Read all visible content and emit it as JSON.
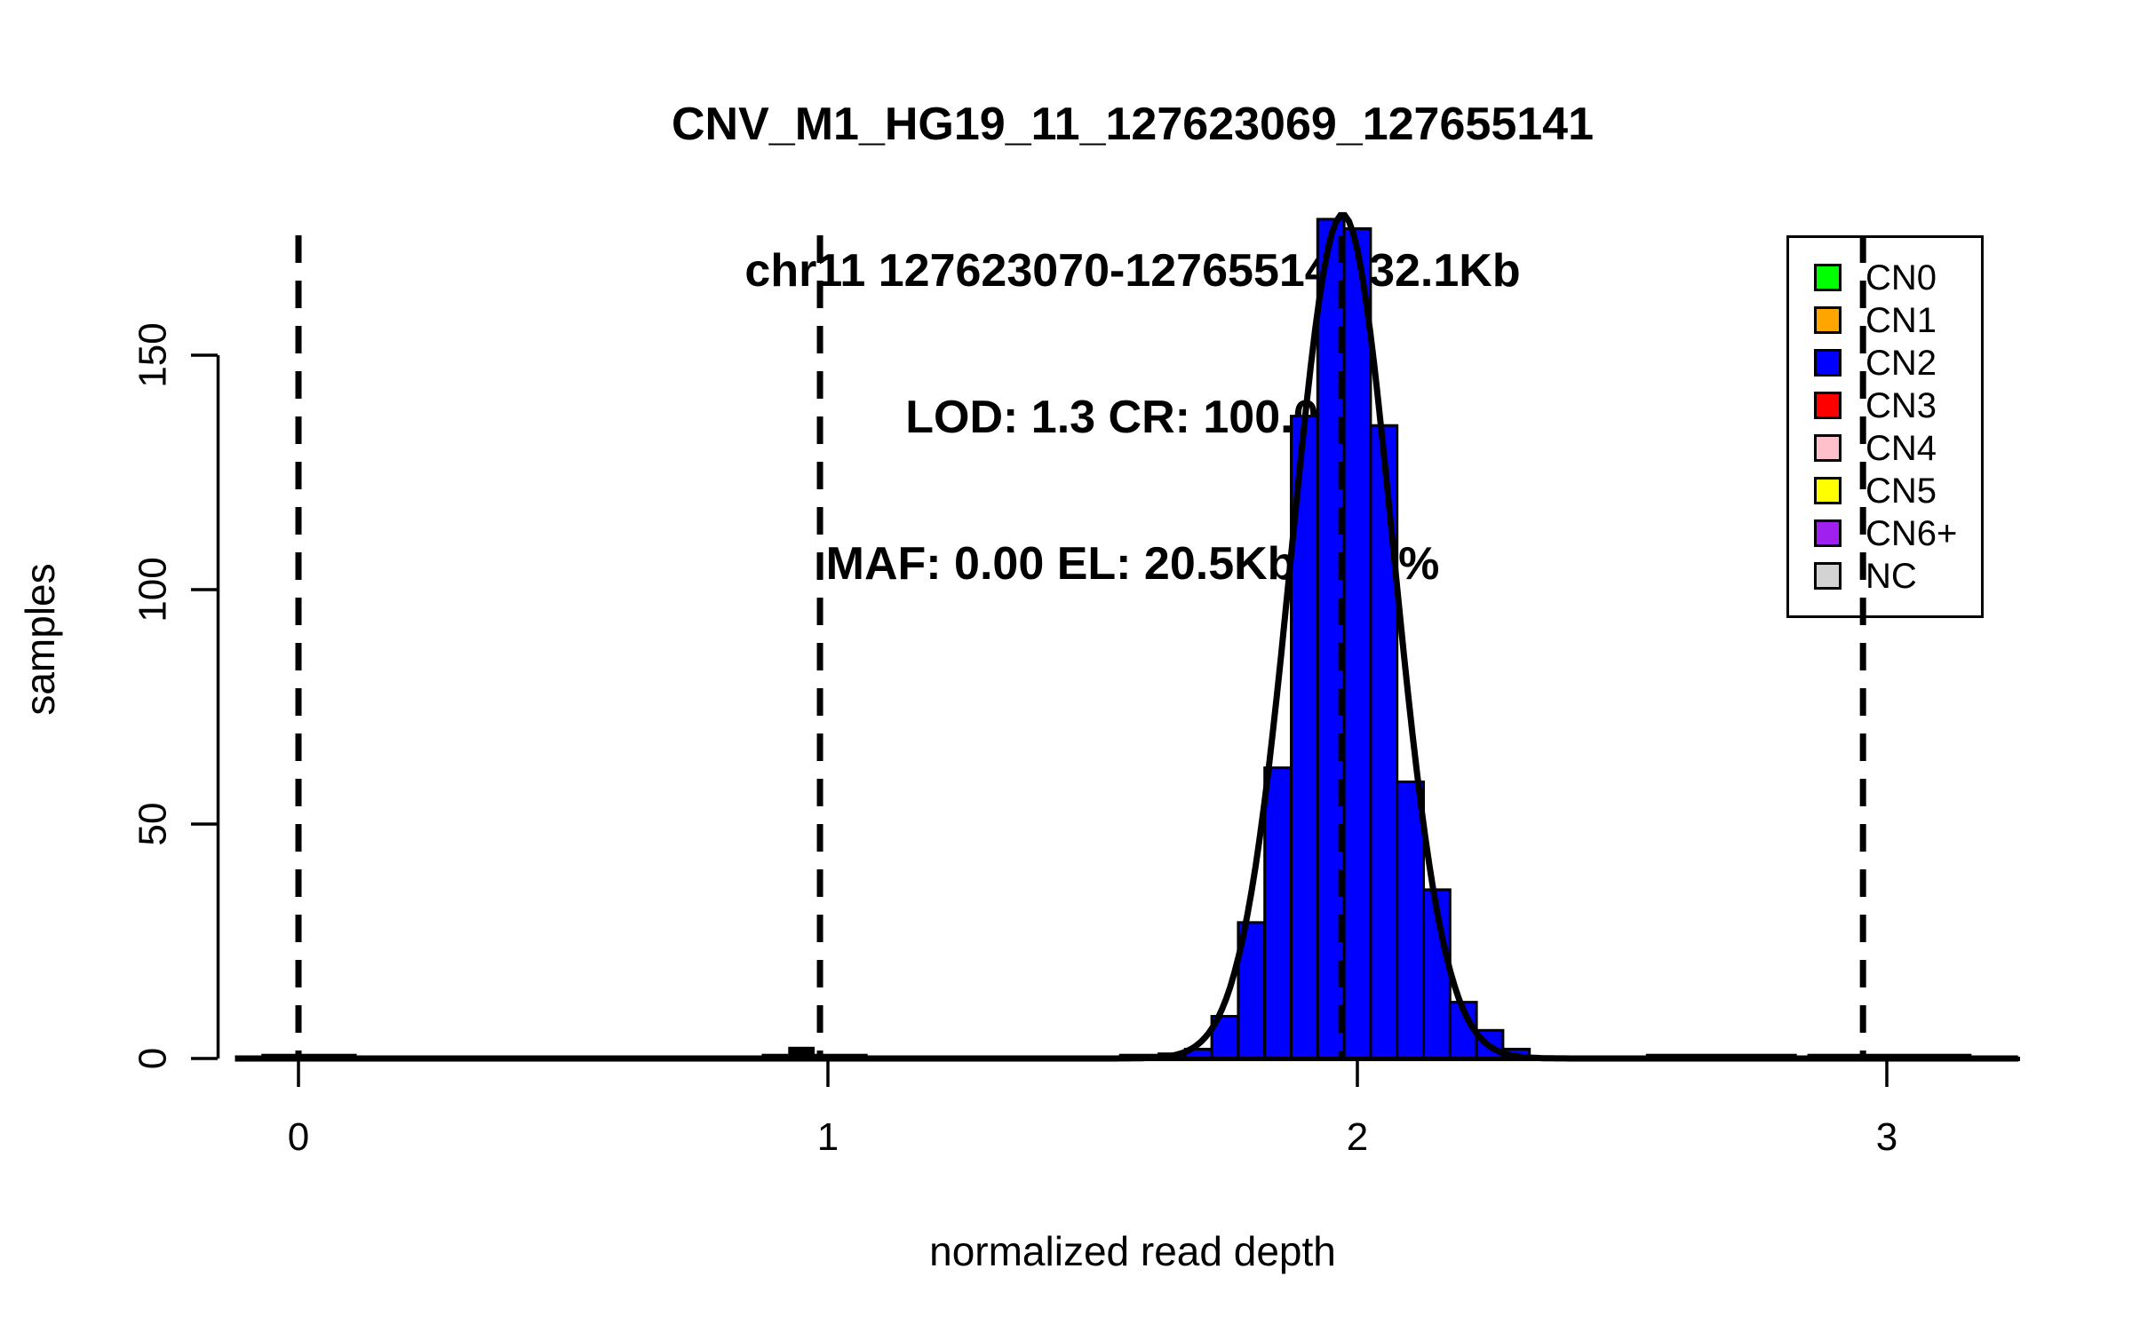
{
  "chart_data": {
    "type": "bar",
    "subtype": "histogram-with-density-fit",
    "title_lines": [
      "CNV_M1_HG19_11_127623069_127655141",
      "chr11 127623070-127655141 32.1Kb",
      "LOD: 1.3 CR: 100.0%",
      "MAF: 0.00 EL: 20.5Kb 64.0%"
    ],
    "xlabel": "normalized read depth",
    "ylabel": "samples",
    "x_ticks": [
      0,
      1,
      2,
      3
    ],
    "y_ticks": [
      0,
      50,
      100,
      150
    ],
    "xlim": [
      -0.12,
      3.25
    ],
    "ylim": [
      0,
      185
    ],
    "bin_width": 0.05,
    "bars": [
      {
        "x0": 1.625,
        "count": 1
      },
      {
        "x0": 1.675,
        "count": 2
      },
      {
        "x0": 1.725,
        "count": 9
      },
      {
        "x0": 1.775,
        "count": 29
      },
      {
        "x0": 1.825,
        "count": 62
      },
      {
        "x0": 1.875,
        "count": 137
      },
      {
        "x0": 1.925,
        "count": 179
      },
      {
        "x0": 1.975,
        "count": 177
      },
      {
        "x0": 2.025,
        "count": 135
      },
      {
        "x0": 2.075,
        "count": 59
      },
      {
        "x0": 2.125,
        "count": 36
      },
      {
        "x0": 2.175,
        "count": 12
      },
      {
        "x0": 2.225,
        "count": 6
      },
      {
        "x0": 2.275,
        "count": 2
      }
    ],
    "minor_bars": [
      {
        "x0": -0.07,
        "x1": 0.11,
        "count": 1
      },
      {
        "x0": 0.875,
        "x1": 0.925,
        "count": 1
      },
      {
        "x0": 0.925,
        "x1": 0.975,
        "count": 2.5
      },
      {
        "x0": 0.975,
        "x1": 1.075,
        "count": 1
      },
      {
        "x0": 1.55,
        "x1": 1.625,
        "count": 1
      },
      {
        "x0": 2.545,
        "x1": 2.83,
        "count": 1
      },
      {
        "x0": 2.85,
        "x1": 3.16,
        "count": 1
      }
    ],
    "density_curve": {
      "shape": "gaussian",
      "mean": 1.972,
      "sd": 0.0955,
      "peak": 180
    },
    "cluster_mean_lines": [
      0,
      0.985,
      1.97,
      2.955
    ],
    "bar_fill": "#0000FF",
    "line_color": "#000000",
    "legend_position": "top-right",
    "legend": {
      "items": [
        {
          "label": "CN0",
          "color": "#00FF00"
        },
        {
          "label": "CN1",
          "color": "#FFA500"
        },
        {
          "label": "CN2",
          "color": "#0000FF"
        },
        {
          "label": "CN3",
          "color": "#FF0000"
        },
        {
          "label": "CN4",
          "color": "#FFC0CB"
        },
        {
          "label": "CN5",
          "color": "#FFFF00"
        },
        {
          "label": "CN6+",
          "color": "#A020F0"
        },
        {
          "label": "NC",
          "color": "#D3D3D3"
        }
      ]
    }
  }
}
